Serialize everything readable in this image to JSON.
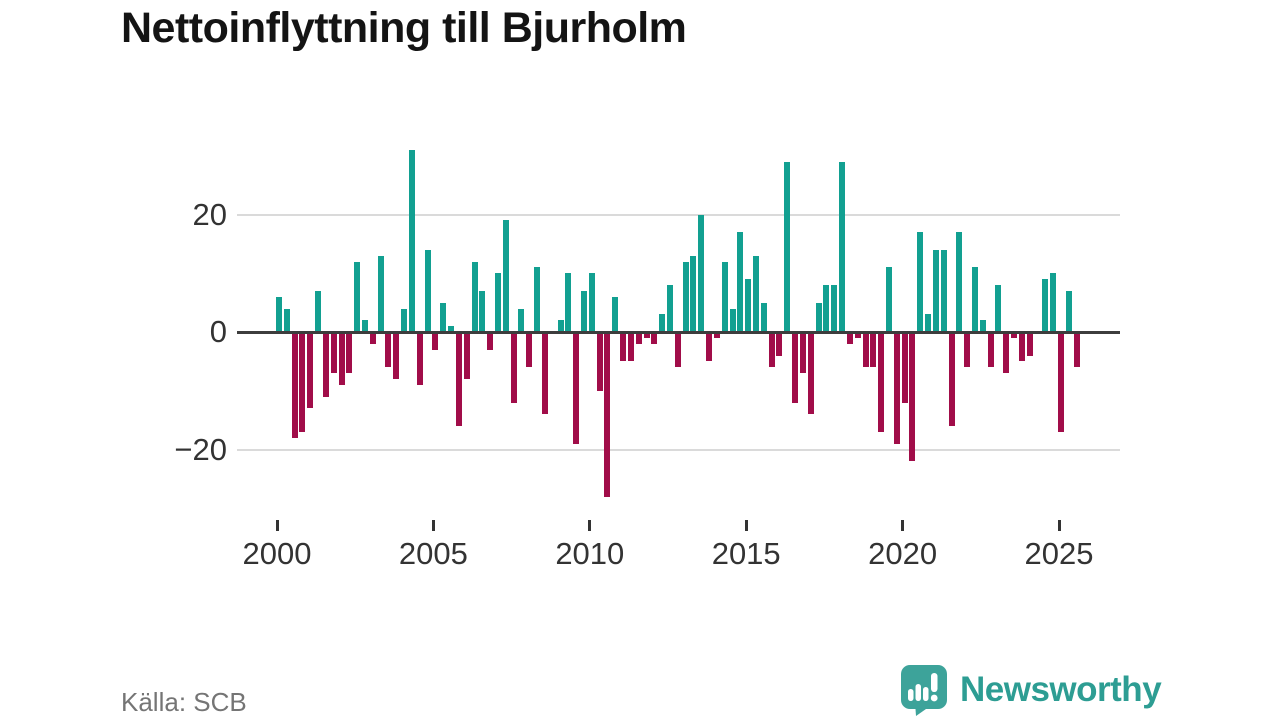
{
  "page": {
    "title": "Nettoinflyttning till Bjurholm",
    "source": "Källa: SCB"
  },
  "logo": {
    "text": "Newsworthy",
    "icon": "bar-chart-speech-bubble",
    "color": "#2d9d93"
  },
  "chart_data": {
    "type": "bar",
    "title": "Nettoinflyttning till Bjurholm",
    "frequency": "quarterly",
    "start_period": "2000 Q1",
    "end_period": "2025 Q3",
    "values": [
      6,
      4,
      -18,
      -17,
      -13,
      7,
      -11,
      -7,
      -9,
      -7,
      12,
      2,
      -2,
      13,
      -6,
      -8,
      4,
      31,
      -9,
      14,
      -3,
      5,
      1,
      -16,
      -8,
      12,
      7,
      -3,
      10,
      19,
      -12,
      4,
      -6,
      11,
      -14,
      0,
      2,
      10,
      -19,
      7,
      10,
      -10,
      -28,
      6,
      -5,
      -5,
      -2,
      -1,
      -2,
      3,
      8,
      -6,
      12,
      13,
      20,
      -5,
      -1,
      12,
      4,
      17,
      9,
      13,
      5,
      -6,
      -4,
      29,
      -12,
      -7,
      -14,
      5,
      8,
      8,
      29,
      -2,
      -1,
      -6,
      -6,
      -17,
      11,
      -19,
      -12,
      -22,
      17,
      3,
      14,
      14,
      -16,
      17,
      -6,
      11,
      2,
      -6,
      8,
      -7,
      -1,
      -5,
      -4,
      0,
      9,
      10,
      -17,
      7,
      -6
    ],
    "x_tick_labels": [
      "2000",
      "2005",
      "2010",
      "2015",
      "2020",
      "2025"
    ],
    "y_ticks": [
      20,
      0,
      -20
    ],
    "ylim": [
      -30,
      33
    ],
    "grid": true,
    "legend_position": "none",
    "positive_color": "#12a091",
    "negative_color": "#a10d49",
    "axis_text_color": "#333333",
    "zero_line_color": "#3d3d3d",
    "gridline_color": "#dadada"
  }
}
